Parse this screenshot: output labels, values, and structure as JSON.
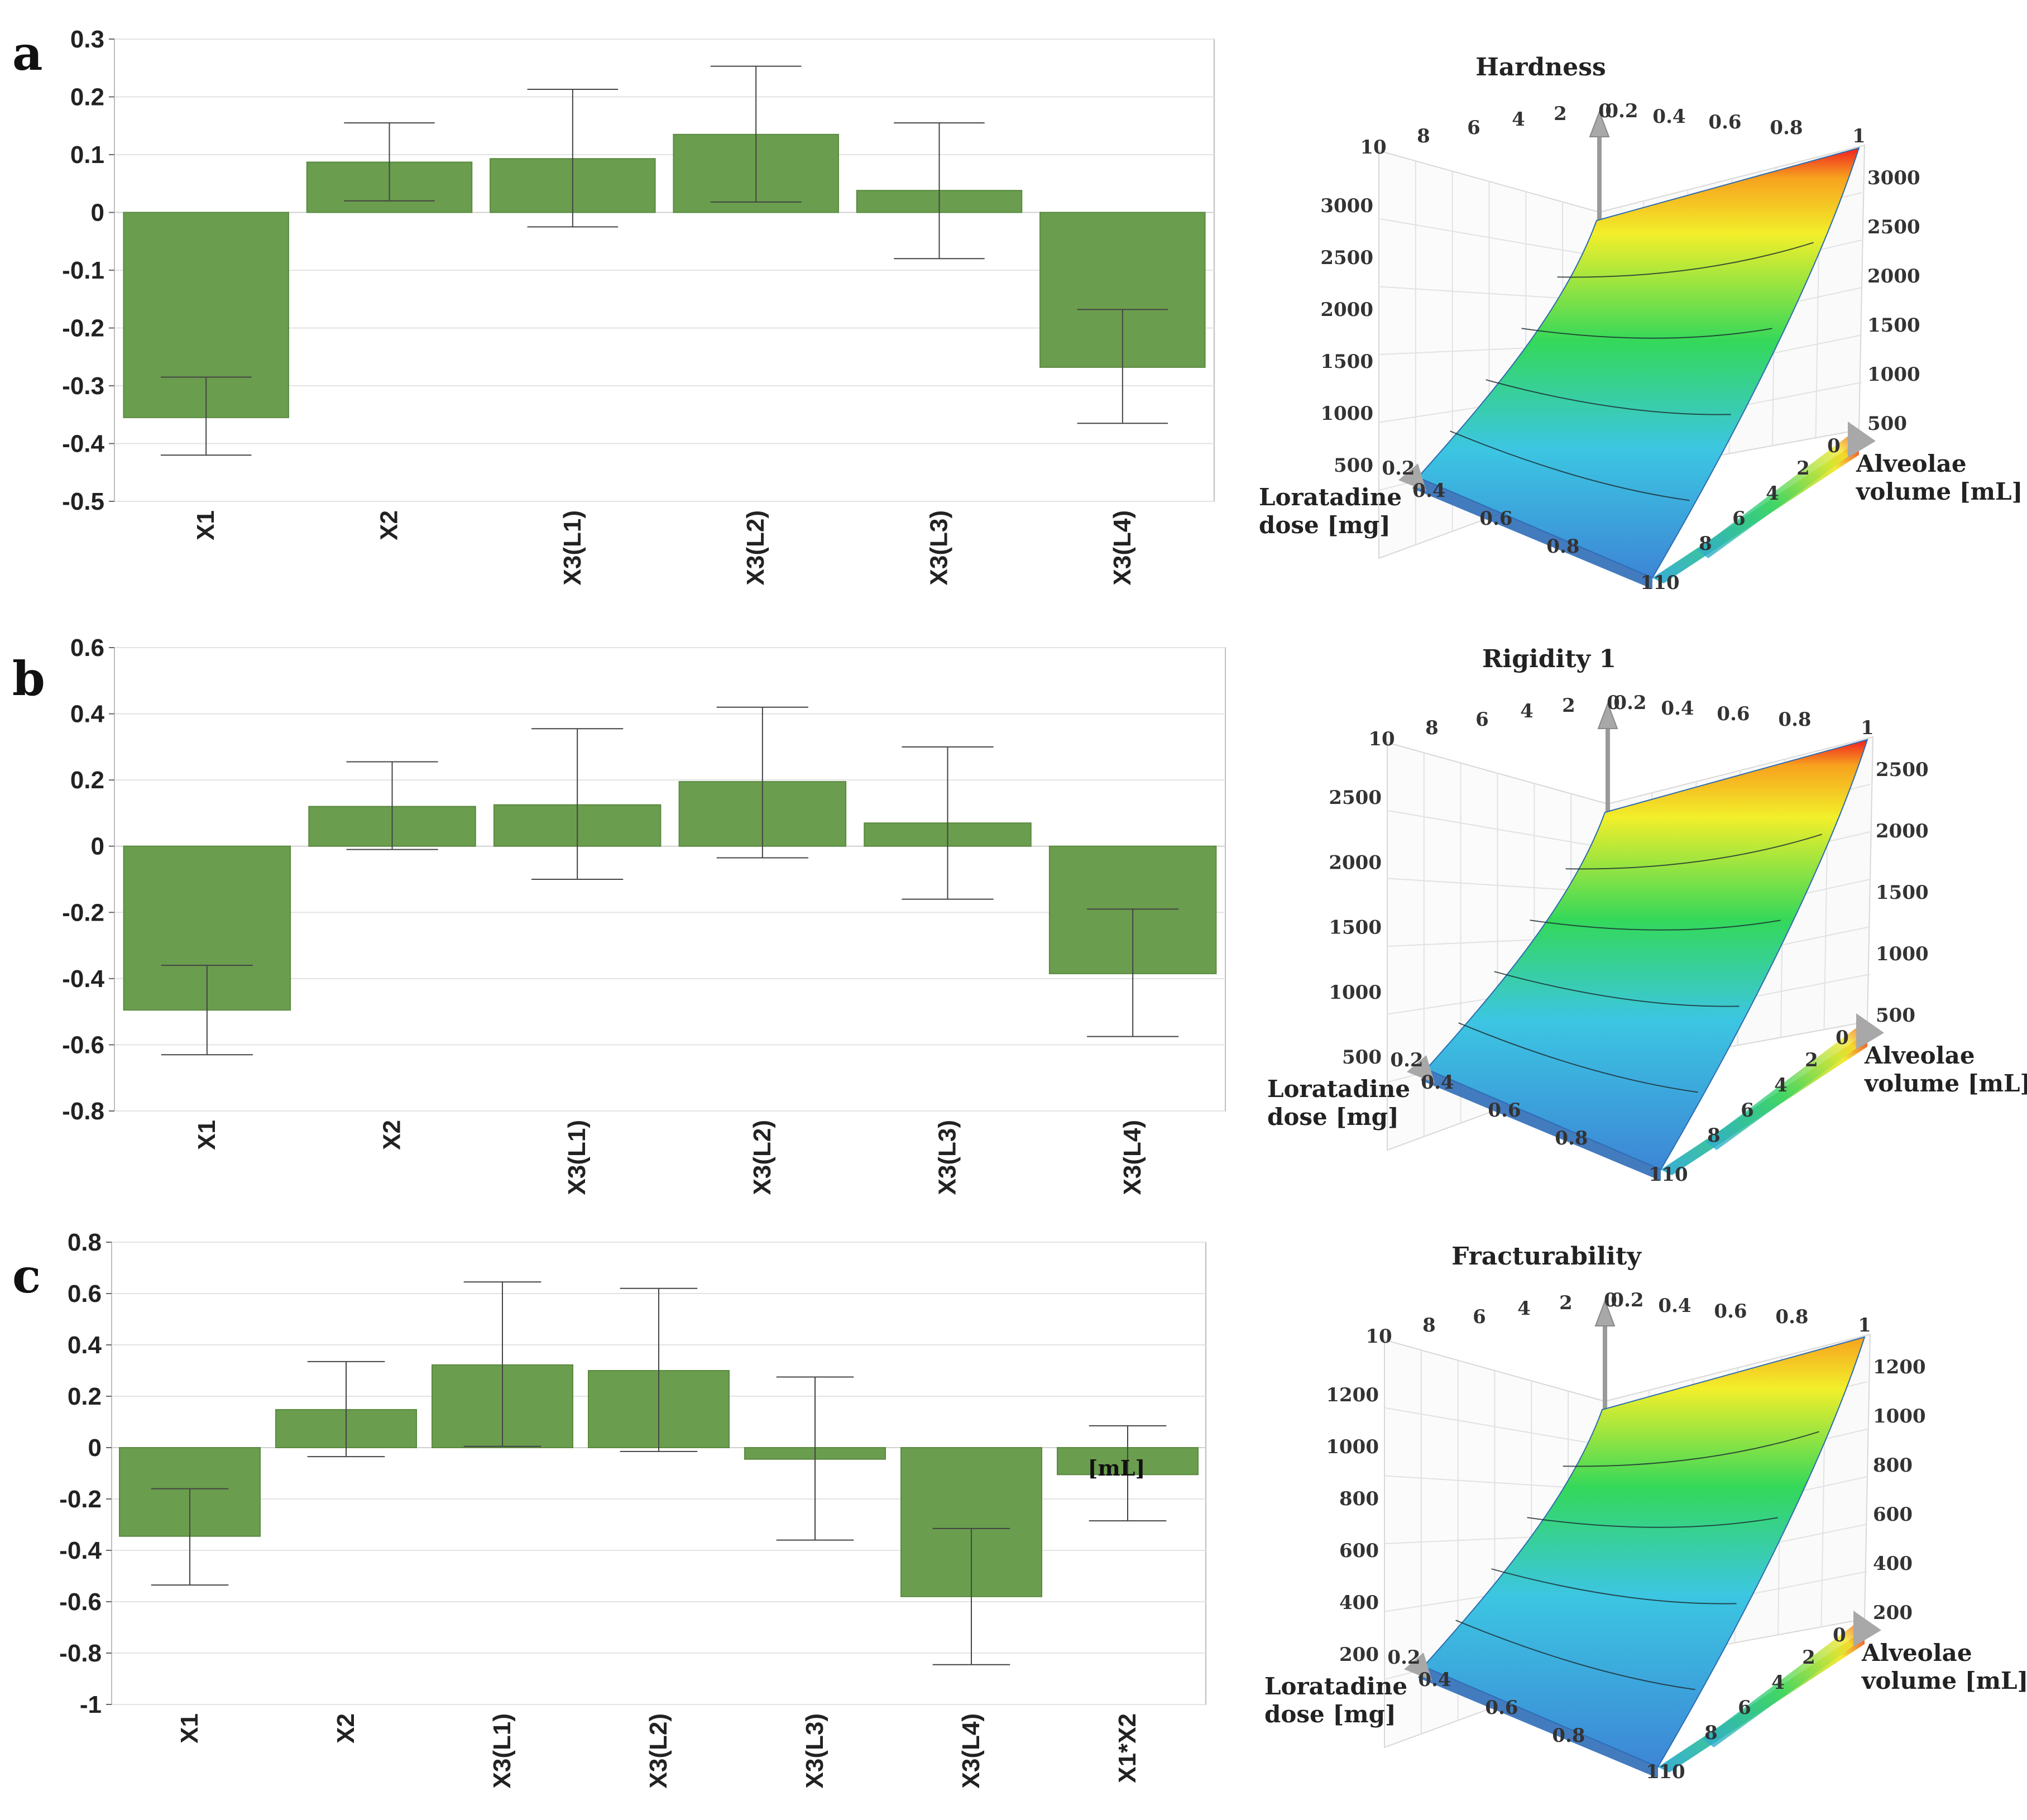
{
  "panels": [
    {
      "letter": "a",
      "surface_title": "Hardness"
    },
    {
      "letter": "b",
      "surface_title": "Rigidity 1"
    },
    {
      "letter": "c",
      "surface_title": "Fracturability"
    }
  ],
  "colors": {
    "bar_fill": "#6a9d4e",
    "bar_edge": "#5a8a3f",
    "grid": "#e3e3e3",
    "frame": "#bdbdbd"
  },
  "annotation_c": "[mL]",
  "chart_data": [
    {
      "type": "bar",
      "panel": "a",
      "categories": [
        "X1",
        "X2",
        "X3(L1)",
        "X3(L2)",
        "X3(L3)",
        "X3(L4)"
      ],
      "values": [
        -0.355,
        0.087,
        0.093,
        0.135,
        0.038,
        -0.268
      ],
      "error_low": [
        -0.42,
        0.02,
        -0.025,
        0.018,
        -0.08,
        -0.365
      ],
      "error_high": [
        -0.285,
        0.155,
        0.213,
        0.253,
        0.155,
        -0.168
      ],
      "yticks": [
        "0.3",
        "0.2",
        "0.1",
        "0",
        "-0.1",
        "-0.2",
        "-0.3",
        "-0.4",
        "-0.5"
      ],
      "ylim": [
        -0.5,
        0.3
      ],
      "grid": true
    },
    {
      "type": "bar",
      "panel": "b",
      "categories": [
        "X1",
        "X2",
        "X3(L1)",
        "X3(L2)",
        "X3(L3)",
        "X3(L4)"
      ],
      "values": [
        -0.495,
        0.12,
        0.125,
        0.195,
        0.07,
        -0.385
      ],
      "error_low": [
        -0.63,
        -0.01,
        -0.1,
        -0.035,
        -0.16,
        -0.575
      ],
      "error_high": [
        -0.36,
        0.255,
        0.355,
        0.42,
        0.3,
        -0.19
      ],
      "yticks": [
        "0.6",
        "0.4",
        "0.2",
        "0",
        "-0.2",
        "-0.4",
        "-0.6",
        "-0.8"
      ],
      "ylim": [
        -0.8,
        0.6
      ],
      "grid": true
    },
    {
      "type": "bar",
      "panel": "c",
      "categories": [
        "X1",
        "X2",
        "X3(L1)",
        "X3(L2)",
        "X3(L3)",
        "X3(L4)",
        "X1*X2"
      ],
      "values": [
        -0.345,
        0.148,
        0.322,
        0.3,
        -0.045,
        -0.58,
        -0.105
      ],
      "error_low": [
        -0.535,
        -0.035,
        0.005,
        -0.015,
        -0.36,
        -0.845,
        -0.285
      ],
      "error_high": [
        -0.16,
        0.335,
        0.645,
        0.62,
        0.275,
        -0.315,
        0.085
      ],
      "yticks": [
        "0.8",
        "0.6",
        "0.4",
        "0.2",
        "0",
        "-0.2",
        "-0.4",
        "-0.6",
        "-0.8",
        "-1"
      ],
      "ylim": [
        -1.0,
        0.8
      ],
      "grid": true
    },
    {
      "type": "surface3d",
      "panel": "a",
      "title": "Hardness",
      "x_axis_label": [
        "Loratadine",
        "dose [mg]"
      ],
      "y_axis_label": [
        "Alveolae",
        "volume [mL]"
      ],
      "x_range": [
        0.2,
        1.0
      ],
      "y_range": [
        0,
        10
      ],
      "z_ticks": [
        "500",
        "1000",
        "1500",
        "2000",
        "2500",
        "3000"
      ],
      "z_range": [
        500,
        3300
      ],
      "top_back_ticks": [
        "10",
        "8",
        "6",
        "4",
        "2",
        "0",
        "0.2",
        "0.4",
        "0.6",
        "0.8",
        "1"
      ],
      "front_x_ticks": [
        "0.2",
        "0.4",
        "0.6",
        "0.8",
        "1"
      ],
      "front_y_ticks": [
        "0",
        "2",
        "4",
        "6",
        "8",
        "10"
      ]
    },
    {
      "type": "surface3d",
      "panel": "b",
      "title": "Rigidity 1",
      "x_axis_label": [
        "Loratadine",
        "dose [mg]"
      ],
      "y_axis_label": [
        "Alveolae",
        "volume [mL]"
      ],
      "x_range": [
        0.2,
        1.0
      ],
      "y_range": [
        0,
        10
      ],
      "z_ticks": [
        "500",
        "1000",
        "1500",
        "2000",
        "2500"
      ],
      "z_range": [
        300,
        2700
      ],
      "top_back_ticks": [
        "10",
        "8",
        "6",
        "4",
        "2",
        "0",
        "0.2",
        "0.4",
        "0.6",
        "0.8",
        "1"
      ],
      "front_x_ticks": [
        "0.2",
        "0.4",
        "0.6",
        "0.8",
        "1"
      ],
      "front_y_ticks": [
        "0",
        "2",
        "4",
        "6",
        "8",
        "10"
      ]
    },
    {
      "type": "surface3d",
      "panel": "c",
      "title": "Fracturability",
      "x_axis_label": [
        "Loratadine",
        "dose [mg]"
      ],
      "y_axis_label": [
        "Alveolae",
        "volume [mL]"
      ],
      "x_range": [
        0.2,
        1.0
      ],
      "y_range": [
        0,
        10
      ],
      "z_ticks": [
        "200",
        "400",
        "600",
        "800",
        "1000",
        "1200"
      ],
      "z_range": [
        150,
        1250
      ],
      "top_back_ticks": [
        "10",
        "8",
        "6",
        "4",
        "2",
        "0",
        "0.2",
        "0.4",
        "0.6",
        "0.8",
        "1"
      ],
      "front_x_ticks": [
        "0.2",
        "0.4",
        "0.6",
        "0.8",
        "1"
      ],
      "front_y_ticks": [
        "0",
        "2",
        "4",
        "6",
        "8",
        "10"
      ]
    }
  ]
}
